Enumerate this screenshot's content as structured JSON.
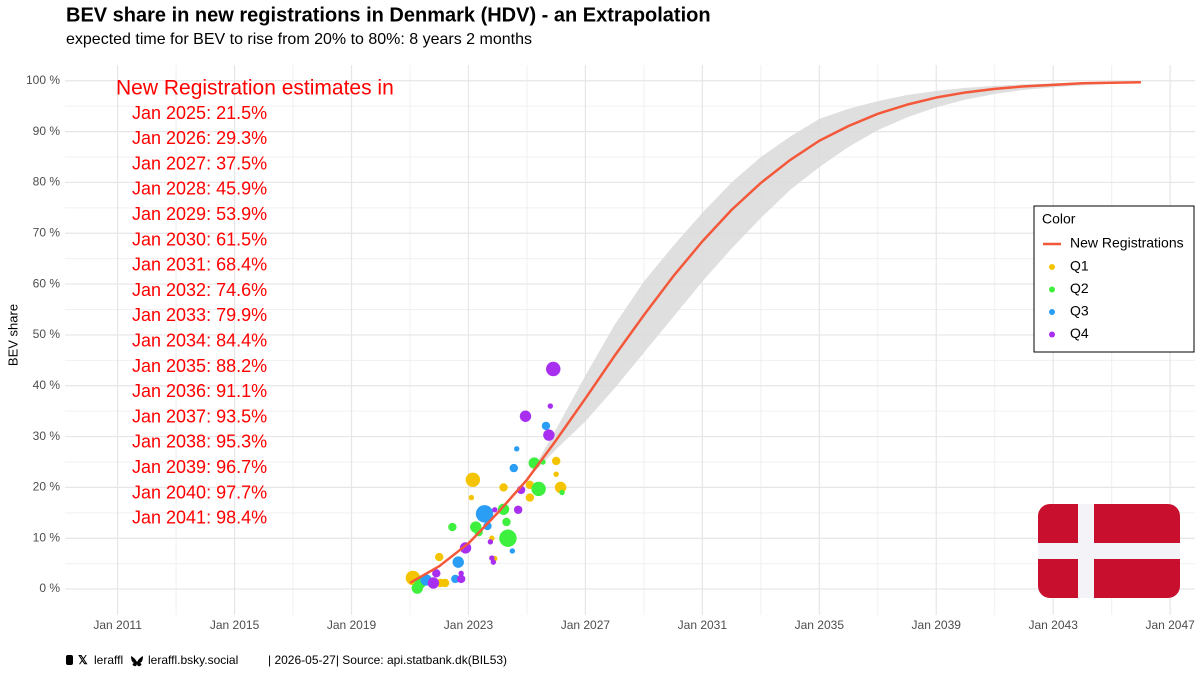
{
  "chart_data": {
    "type": "line",
    "title": "BEV share in new registrations in Denmark (HDV) - an Extrapolation",
    "subtitle": "expected time for BEV to rise from 20% to 80%: 8 years 2 months",
    "y_label": "BEV share",
    "xlim": [
      2009.2,
      2047.85
    ],
    "ylim": [
      -5.1,
      103.1
    ],
    "xticks": [
      {
        "value": 2011,
        "label": "Jan 2011"
      },
      {
        "value": 2015,
        "label": "Jan 2015"
      },
      {
        "value": 2019,
        "label": "Jan 2019"
      },
      {
        "value": 2023,
        "label": "Jan 2023"
      },
      {
        "value": 2027,
        "label": "Jan 2027"
      },
      {
        "value": 2031,
        "label": "Jan 2031"
      },
      {
        "value": 2035,
        "label": "Jan 2035"
      },
      {
        "value": 2039,
        "label": "Jan 2039"
      },
      {
        "value": 2043,
        "label": "Jan 2043"
      },
      {
        "value": 2047,
        "label": "Jan 2047"
      }
    ],
    "yticks": [
      {
        "value": 0,
        "label": "0 %"
      },
      {
        "value": 10,
        "label": "10 %"
      },
      {
        "value": 20,
        "label": "20 %"
      },
      {
        "value": 30,
        "label": "30 %"
      },
      {
        "value": 40,
        "label": "40 %"
      },
      {
        "value": 50,
        "label": "50 %"
      },
      {
        "value": 60,
        "label": "60 %"
      },
      {
        "value": 70,
        "label": "70 %"
      },
      {
        "value": 80,
        "label": "80 %"
      },
      {
        "value": 90,
        "label": "90 %"
      },
      {
        "value": 100,
        "label": "100 %"
      }
    ],
    "grid": true,
    "series": [
      {
        "name": "New Registrations",
        "color": "#f4583a",
        "x": [
          2021,
          2022,
          2023,
          2024,
          2025,
          2026,
          2027,
          2028,
          2029,
          2030,
          2031,
          2032,
          2033,
          2034,
          2035,
          2036,
          2037,
          2038,
          2039,
          2040,
          2041,
          2042,
          2043,
          2044,
          2045,
          2046
        ],
        "values": [
          1.2,
          4.5,
          9,
          15,
          21.5,
          29.3,
          37.5,
          45.9,
          53.9,
          61.5,
          68.4,
          74.6,
          79.9,
          84.4,
          88.2,
          91.1,
          93.5,
          95.3,
          96.7,
          97.7,
          98.4,
          98.9,
          99.2,
          99.5,
          99.6,
          99.7
        ]
      }
    ],
    "band": {
      "color": "#d9d9d9",
      "x": [
        2025,
        2026,
        2027,
        2028,
        2029,
        2030,
        2031,
        2032,
        2033,
        2034,
        2035,
        2036,
        2037,
        2038,
        2039,
        2040,
        2041,
        2042,
        2043,
        2044,
        2045,
        2046
      ],
      "lower": [
        21.5,
        27.5,
        33,
        39.5,
        46.5,
        53.5,
        60.5,
        67,
        73,
        78.5,
        83,
        87,
        90.3,
        92.8,
        94.8,
        96.3,
        97.4,
        98.2,
        98.7,
        99.1,
        99.4,
        99.6
      ],
      "upper": [
        21.5,
        31.5,
        42,
        52,
        60.5,
        67.5,
        74,
        80,
        85,
        89,
        92.5,
        94.5,
        96,
        97.2,
        98,
        98.6,
        99,
        99.3,
        99.5,
        99.7,
        99.8,
        99.9
      ]
    },
    "scatter": [
      {
        "name": "Q1",
        "color": "#f5c400",
        "x": [
          2021.1,
          2022.0,
          2022.05,
          2023.15,
          2023.1,
          2023.8,
          2023.9,
          2024.2,
          2025.1,
          2025.1,
          2026.0,
          2026.0,
          2026.15,
          2022.2
        ],
        "values": [
          2.2,
          6.3,
          1.2,
          21.5,
          18,
          10,
          6,
          20,
          18,
          20.5,
          25.2,
          22.6,
          20,
          1.2
        ],
        "sizes": [
          4,
          2,
          2,
          4,
          1,
          1,
          1,
          2,
          2,
          2,
          2,
          1,
          3,
          2
        ]
      },
      {
        "name": "Q2",
        "color": "#3ef03e",
        "x": [
          2021.25,
          2021.35,
          2022.45,
          2023.25,
          2023.35,
          2024.2,
          2024.3,
          2024.35,
          2025.25,
          2025.4,
          2025.55,
          2026.2
        ],
        "values": [
          0.2,
          1.2,
          12.2,
          12.2,
          11.2,
          15.7,
          13.2,
          10,
          24.8,
          19.7,
          25,
          19
        ],
        "sizes": [
          3,
          3,
          2,
          3,
          2,
          3,
          2,
          5,
          3,
          4,
          1,
          1
        ]
      },
      {
        "name": "Q3",
        "color": "#2a9df4",
        "x": [
          2021.55,
          2022.55,
          2022.65,
          2023.55,
          2023.65,
          2024.5,
          2024.55,
          2024.65,
          2025.65
        ],
        "values": [
          1.8,
          2,
          5.3,
          14.8,
          12.4,
          7.5,
          23.8,
          27.6,
          32.1
        ],
        "sizes": [
          3,
          2,
          3,
          5,
          2,
          1,
          2,
          1,
          2
        ]
      },
      {
        "name": "Q4",
        "color": "#a82ff0",
        "x": [
          2021.8,
          2021.9,
          2022.75,
          2022.75,
          2022.9,
          2023.75,
          2023.8,
          2023.85,
          2023.9,
          2024.7,
          2024.8,
          2024.95,
          2025.75,
          2025.8,
          2025.9
        ],
        "values": [
          1.2,
          3.1,
          2,
          3.1,
          8.1,
          9.3,
          6.1,
          5.3,
          15.6,
          15.6,
          19.5,
          34,
          30.3,
          36,
          43.3
        ],
        "sizes": [
          3,
          2,
          2,
          1,
          3,
          1,
          1,
          1,
          1,
          2,
          2,
          3,
          3,
          1,
          4
        ]
      }
    ],
    "legend": {
      "title": "Color",
      "position": "right"
    },
    "annotation": {
      "title": "New Registration estimates in",
      "lines": [
        "Jan 2025: 21.5%",
        "Jan 2026: 29.3%",
        "Jan 2027: 37.5%",
        "Jan 2028: 45.9%",
        "Jan 2029: 53.9%",
        "Jan 2030: 61.5%",
        "Jan 2031: 68.4%",
        "Jan 2032: 74.6%",
        "Jan 2033: 79.9%",
        "Jan 2034: 84.4%",
        "Jan 2035: 88.2%",
        "Jan 2036: 91.1%",
        "Jan 2037: 93.5%",
        "Jan 2038: 95.3%",
        "Jan 2039: 96.7%",
        "Jan 2040: 97.7%",
        "Jan 2041: 98.4%"
      ]
    }
  },
  "footer": {
    "handle": "leraffl",
    "bsky": "leraffl.bsky.social",
    "meta": "| 2026-05-27| Source: api.statbank.dk(BIL53)"
  }
}
